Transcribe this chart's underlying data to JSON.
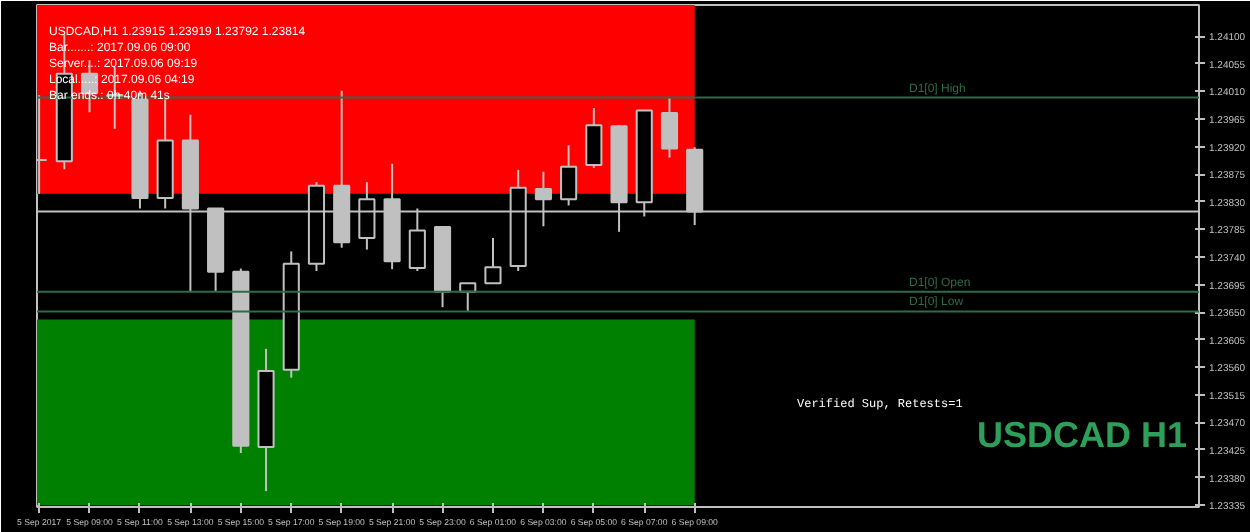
{
  "chart_data": {
    "type": "candlestick",
    "title": "USDCAD,H1  1.23915 1.23919 1.23792 1.23814",
    "x": [
      "2017-09-05T07:00",
      "2017-09-05T08:00",
      "2017-09-05T09:00",
      "2017-09-05T10:00",
      "2017-09-05T11:00",
      "2017-09-05T12:00",
      "2017-09-05T13:00",
      "2017-09-05T14:00",
      "2017-09-05T15:00",
      "2017-09-05T16:00",
      "2017-09-05T17:00",
      "2017-09-05T18:00",
      "2017-09-05T19:00",
      "2017-09-05T20:00",
      "2017-09-05T21:00",
      "2017-09-05T22:00",
      "2017-09-05T23:00",
      "2017-09-06T00:00",
      "2017-09-06T01:00",
      "2017-09-06T02:00",
      "2017-09-06T03:00",
      "2017-09-06T04:00",
      "2017-09-06T05:00",
      "2017-09-06T06:00",
      "2017-09-06T07:00",
      "2017-09-06T08:00",
      "2017-09-06T09:00"
    ],
    "ohlc": [
      [
        1.23898,
        1.24004,
        1.23843,
        1.23898
      ],
      [
        1.23896,
        1.24103,
        1.23883,
        1.24039
      ],
      [
        1.24039,
        1.24061,
        1.23976,
        1.24007
      ],
      [
        1.24004,
        1.2405,
        1.23949,
        1.24
      ],
      [
        1.23997,
        1.24011,
        1.23819,
        1.23836
      ],
      [
        1.23836,
        1.23997,
        1.23819,
        1.2393
      ],
      [
        1.2393,
        1.23972,
        1.23683,
        1.23819
      ],
      [
        1.23819,
        1.23819,
        1.23683,
        1.23716
      ],
      [
        1.23716,
        1.23721,
        1.2342,
        1.23432
      ],
      [
        1.2343,
        1.2359,
        1.23358,
        1.23554
      ],
      [
        1.23556,
        1.23749,
        1.23543,
        1.23729
      ],
      [
        1.23729,
        1.23862,
        1.23717,
        1.23856
      ],
      [
        1.23856,
        1.24011,
        1.23755,
        1.23764
      ],
      [
        1.23771,
        1.23862,
        1.23752,
        1.23834
      ],
      [
        1.23834,
        1.23892,
        1.2372,
        1.23733
      ],
      [
        1.23722,
        1.23819,
        1.23717,
        1.23783
      ],
      [
        1.23789,
        1.23789,
        1.23658,
        1.23683
      ],
      [
        1.23683,
        1.23697,
        1.23652,
        1.23697
      ],
      [
        1.23697,
        1.23771,
        1.23697,
        1.23723
      ],
      [
        1.23725,
        1.23882,
        1.23717,
        1.23853
      ],
      [
        1.23851,
        1.23879,
        1.2379,
        1.23834
      ],
      [
        1.23834,
        1.23922,
        1.23824,
        1.23887
      ],
      [
        1.2389,
        1.23983,
        1.23885,
        1.23955
      ],
      [
        1.23953,
        1.23955,
        1.23781,
        1.23829
      ],
      [
        1.23829,
        1.23979,
        1.23806,
        1.23979
      ],
      [
        1.23975,
        1.23999,
        1.23902,
        1.23917
      ],
      [
        1.23915,
        1.23919,
        1.23792,
        1.23814
      ]
    ],
    "color": "#c0c0c0",
    "xlim": [
      "2017-09-05T06:55",
      "2017-09-07T05:00"
    ],
    "xticks": [
      {
        "value": "2017-09-05T07:00",
        "label": "5 Sep 2017"
      },
      {
        "value": "2017-09-05T09:00",
        "label": "5 Sep 09:00"
      },
      {
        "value": "2017-09-05T11:00",
        "label": "5 Sep 11:00"
      },
      {
        "value": "2017-09-05T13:00",
        "label": "5 Sep 13:00"
      },
      {
        "value": "2017-09-05T15:00",
        "label": "5 Sep 15:00"
      },
      {
        "value": "2017-09-05T17:00",
        "label": "5 Sep 17:00"
      },
      {
        "value": "2017-09-05T19:00",
        "label": "5 Sep 19:00"
      },
      {
        "value": "2017-09-05T21:00",
        "label": "5 Sep 21:00"
      },
      {
        "value": "2017-09-05T23:00",
        "label": "5 Sep 23:00"
      },
      {
        "value": "2017-09-06T01:00",
        "label": "6 Sep 01:00"
      },
      {
        "value": "2017-09-06T03:00",
        "label": "6 Sep 03:00"
      },
      {
        "value": "2017-09-06T05:00",
        "label": "6 Sep 05:00"
      },
      {
        "value": "2017-09-06T07:00",
        "label": "6 Sep 07:00"
      },
      {
        "value": "2017-09-06T09:00",
        "label": "6 Sep 09:00"
      }
    ],
    "ylim": [
      1.23332,
      1.24151
    ],
    "yticks": [
      {
        "value": 1.23335,
        "label": "1.23335"
      },
      {
        "value": 1.2338,
        "label": "1.23380"
      },
      {
        "value": 1.23425,
        "label": "1.23425"
      },
      {
        "value": 1.2347,
        "label": "1.23470"
      },
      {
        "value": 1.23515,
        "label": "1.23515"
      },
      {
        "value": 1.2356,
        "label": "1.23560"
      },
      {
        "value": 1.23605,
        "label": "1.23605"
      },
      {
        "value": 1.2365,
        "label": "1.23650"
      },
      {
        "value": 1.23695,
        "label": "1.23695"
      },
      {
        "value": 1.2374,
        "label": "1.23740"
      },
      {
        "value": 1.23785,
        "label": "1.23785"
      },
      {
        "value": 1.2383,
        "label": "1.23830"
      },
      {
        "value": 1.23875,
        "label": "1.23875"
      },
      {
        "value": 1.2392,
        "label": "1.23920"
      },
      {
        "value": 1.23965,
        "label": "1.23965"
      },
      {
        "value": 1.2401,
        "label": "1.24010"
      },
      {
        "value": 1.24055,
        "label": "1.24055"
      },
      {
        "value": 1.241,
        "label": "1.24100"
      }
    ],
    "bands": [
      {
        "axis": "y",
        "from": 1.23843,
        "to": 1.24151,
        "color": "#ff0000"
      },
      {
        "axis": "y",
        "from": 1.23335,
        "to": 1.23638,
        "color": "#008000"
      }
    ],
    "ref_lines": [
      {
        "axis": "y",
        "value": 1.24,
        "label": "D1[0] High",
        "color": "#2e6b4a"
      },
      {
        "axis": "y",
        "value": 1.23683,
        "label": "D1[0] Open",
        "color": "#2e6b4a"
      },
      {
        "axis": "y",
        "value": 1.23651,
        "label": "D1[0] Low",
        "color": "#2e6b4a"
      },
      {
        "axis": "y",
        "value": 1.23814,
        "color": "#c0c0c0"
      }
    ],
    "annotations": [
      "Bar.......: 2017.09.06 09:00",
      "Server....: 2017.09.06 09:19",
      "Local.....: 2017.09.06 04:19",
      "Bar ends.: 0h 40m 41s",
      "Verified Sup, Retests=1",
      "USDCAD H1"
    ],
    "grid": false
  }
}
